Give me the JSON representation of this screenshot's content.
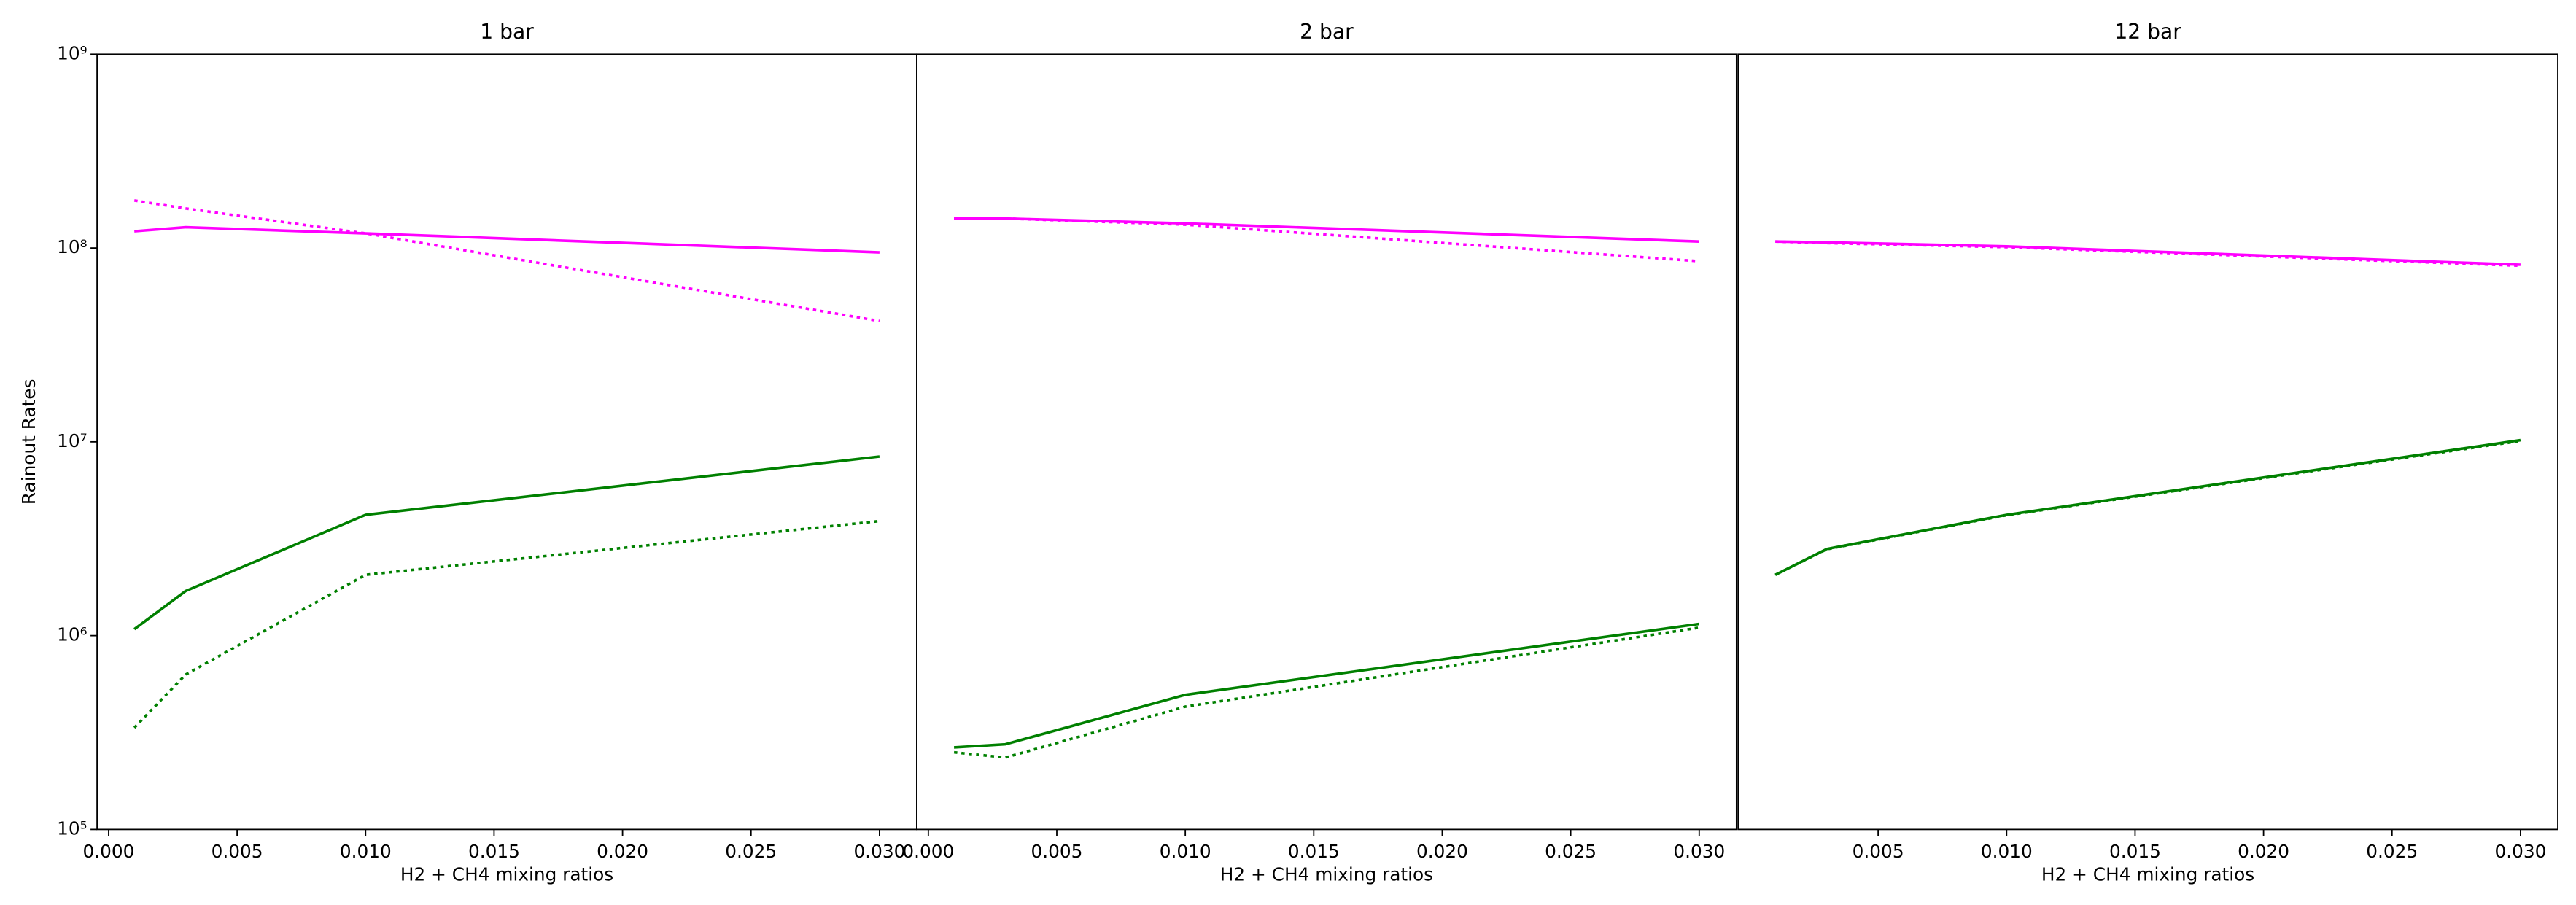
{
  "chart_data": [
    {
      "type": "line",
      "title": "1 bar",
      "xlabel": "H2 + CH4 mixing ratios",
      "ylabel": "Rainout Rates",
      "x": [
        0.001,
        0.003,
        0.01,
        0.03
      ],
      "xlim": [
        -0.00045,
        0.03145
      ],
      "xticks": [
        {
          "value": 0,
          "label": "0.000"
        },
        {
          "value": 0.005,
          "label": "0.005"
        },
        {
          "value": 0.01,
          "label": "0.010"
        },
        {
          "value": 0.015,
          "label": "0.015"
        },
        {
          "value": 0.02,
          "label": "0.020"
        },
        {
          "value": 0.025,
          "label": "0.025"
        },
        {
          "value": 0.03,
          "label": "0.030"
        }
      ],
      "ylim": [
        100000,
        1000000000
      ],
      "log_y": true,
      "yticks": [
        {
          "value": 100000,
          "label": "10⁵"
        },
        {
          "value": 1000000,
          "label": "10⁶"
        },
        {
          "value": 10000000,
          "label": "10⁷"
        },
        {
          "value": 100000000,
          "label": "10⁸"
        },
        {
          "value": 1000000000,
          "label": "10⁹"
        }
      ],
      "series": [
        {
          "color": "#ff00ff",
          "style": "solid",
          "values": [
            122000000,
            128000000,
            119000000,
            95000000
          ]
        },
        {
          "color": "#ff00ff",
          "style": "dotted",
          "values": [
            176000000,
            160000000,
            119000000,
            42000000
          ]
        },
        {
          "color": "#008000",
          "style": "solid",
          "values": [
            1080000,
            1700000,
            4200000,
            8400000
          ]
        },
        {
          "color": "#008000",
          "style": "dotted",
          "values": [
            335000,
            630000,
            2060000,
            3900000
          ]
        }
      ]
    },
    {
      "type": "line",
      "title": "2 bar",
      "xlabel": "H2 + CH4 mixing ratios",
      "x": [
        0.001,
        0.003,
        0.01,
        0.03
      ],
      "xlim": [
        -0.00045,
        0.03145
      ],
      "xticks": [
        {
          "value": 0,
          "label": "0.000"
        },
        {
          "value": 0.005,
          "label": "0.005"
        },
        {
          "value": 0.01,
          "label": "0.010"
        },
        {
          "value": 0.015,
          "label": "0.015"
        },
        {
          "value": 0.02,
          "label": "0.020"
        },
        {
          "value": 0.025,
          "label": "0.025"
        },
        {
          "value": 0.03,
          "label": "0.030"
        }
      ],
      "ylim": [
        100000,
        1000000000
      ],
      "log_y": true,
      "series": [
        {
          "color": "#ff00ff",
          "style": "solid",
          "values": [
            142000000,
            142000000,
            134000000,
            108000000
          ]
        },
        {
          "color": "#ff00ff",
          "style": "dotted",
          "values": [
            142000000,
            142000000,
            132000000,
            85500000
          ]
        },
        {
          "color": "#008000",
          "style": "solid",
          "values": [
            265000,
            275000,
            495000,
            1150000
          ]
        },
        {
          "color": "#008000",
          "style": "dotted",
          "values": [
            250000,
            235000,
            430000,
            1100000
          ]
        }
      ]
    },
    {
      "type": "line",
      "title": "12 bar",
      "xlabel": "H2 + CH4 mixing ratios",
      "x": [
        0.001,
        0.003,
        0.01,
        0.03
      ],
      "xlim": [
        -0.00045,
        0.03145
      ],
      "xticks": [
        {
          "value": 0.005,
          "label": "0.005"
        },
        {
          "value": 0.01,
          "label": "0.010"
        },
        {
          "value": 0.015,
          "label": "0.015"
        },
        {
          "value": 0.02,
          "label": "0.020"
        },
        {
          "value": 0.025,
          "label": "0.025"
        },
        {
          "value": 0.03,
          "label": "0.030"
        }
      ],
      "ylim": [
        100000,
        1000000000
      ],
      "log_y": true,
      "series": [
        {
          "color": "#ff00ff",
          "style": "solid",
          "values": [
            108000000,
            107000000,
            102000000,
            82000000
          ]
        },
        {
          "color": "#ff00ff",
          "style": "dotted",
          "values": [
            108000000,
            106000000,
            101000000,
            81000000
          ]
        },
        {
          "color": "#008000",
          "style": "solid",
          "values": [
            2060000,
            2800000,
            4200000,
            10200000
          ]
        },
        {
          "color": "#008000",
          "style": "dotted",
          "values": [
            2060000,
            2790000,
            4180000,
            10100000
          ]
        }
      ]
    }
  ]
}
